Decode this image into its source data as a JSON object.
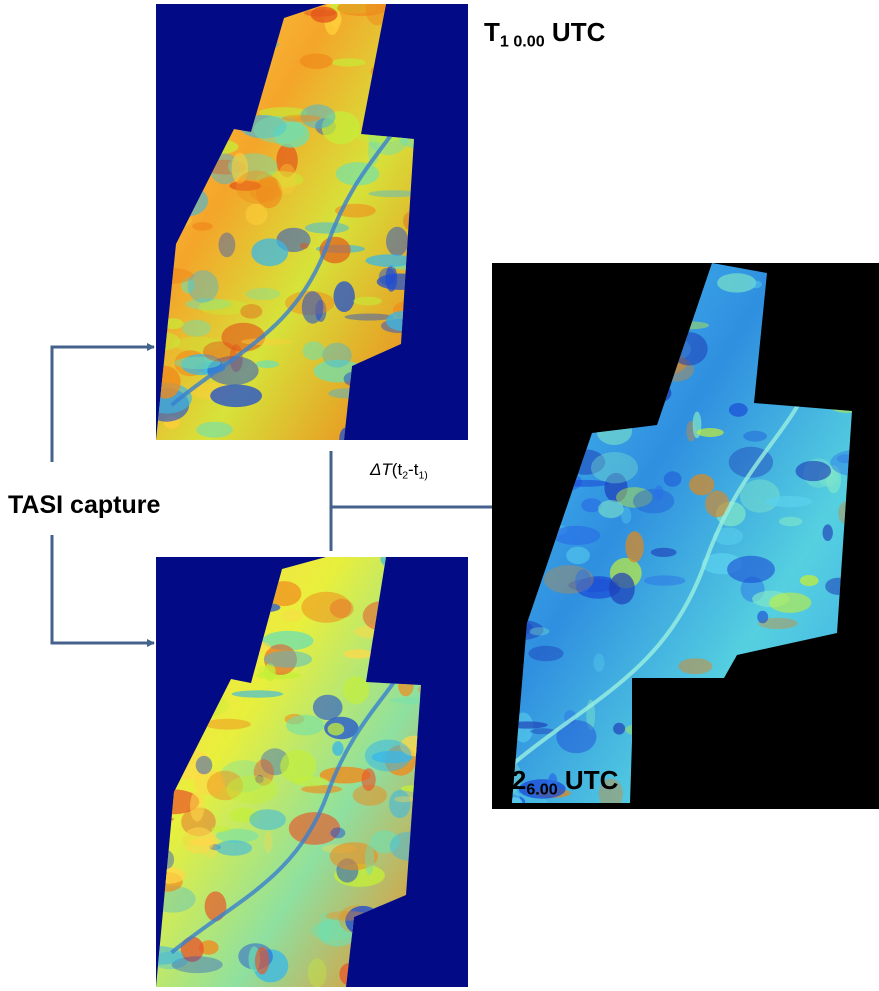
{
  "labels": {
    "t1": {
      "main": "T",
      "sub": "1 0.00",
      "suffix": " UTC"
    },
    "t2": {
      "main": "T2",
      "sub": "6.00",
      "suffix": " UTC"
    },
    "capture": "TASI capture",
    "delta": {
      "symbol": "ΔT",
      "open": "(t",
      "sub_a": "2",
      "dash": "-t",
      "sub_b": "1)"
    }
  },
  "colors": {
    "arrow": "#44628c",
    "panel_background": "#020a86",
    "difference_background": "#000000",
    "heatmap_warm": "#f08a1c",
    "heatmap_cool": "#3aa6e8"
  },
  "panels": [
    {
      "id": "t1",
      "content": "thermal-map"
    },
    {
      "id": "t2",
      "content": "thermal-map"
    },
    {
      "id": "difference",
      "content": "thermal-difference-map"
    }
  ]
}
